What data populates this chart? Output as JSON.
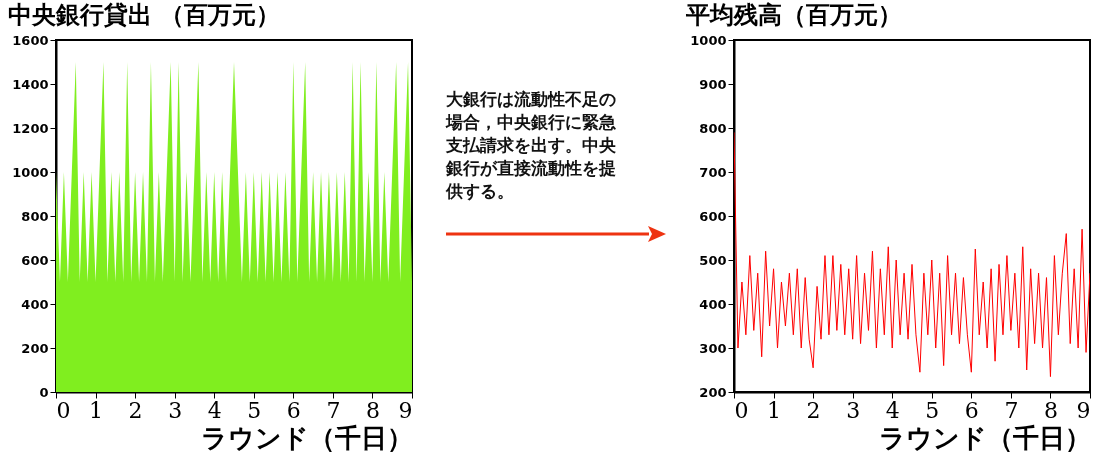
{
  "chart_data": [
    {
      "type": "area",
      "title": "中央銀行貸出 （百万元）",
      "xlabel": "ラウンド（千日）",
      "color": "#80ee1f",
      "xlim": [
        0,
        9
      ],
      "xticks": [
        0,
        1,
        2,
        3,
        4,
        5,
        6,
        7,
        8,
        9
      ],
      "ylim": [
        0,
        1600
      ],
      "yticks": [
        0,
        200,
        400,
        600,
        800,
        1000,
        1200,
        1400,
        1600
      ],
      "annotations": [
        "大銀行は流動性不足の場合，中央銀行に緊急支払請求を出す。中央銀行が直接流動性を提供する。"
      ],
      "x": [
        0,
        0.1,
        0.2,
        0.3,
        0.4,
        0.5,
        0.6,
        0.7,
        0.8,
        0.9,
        1,
        1.1,
        1.2,
        1.3,
        1.4,
        1.5,
        1.6,
        1.7,
        1.8,
        1.9,
        2,
        2.1,
        2.2,
        2.3,
        2.4,
        2.5,
        2.6,
        2.7,
        2.8,
        2.9,
        3,
        3.1,
        3.2,
        3.3,
        3.4,
        3.5,
        3.6,
        3.7,
        3.8,
        3.9,
        4,
        4.1,
        4.2,
        4.3,
        4.4,
        4.5,
        4.6,
        4.7,
        4.8,
        4.9,
        5,
        5.1,
        5.2,
        5.3,
        5.4,
        5.5,
        5.6,
        5.7,
        5.8,
        5.9,
        6,
        6.1,
        6.2,
        6.3,
        6.4,
        6.5,
        6.6,
        6.7,
        6.8,
        6.9,
        7,
        7.1,
        7.2,
        7.3,
        7.4,
        7.5,
        7.6,
        7.7,
        7.8,
        7.9,
        8,
        8.1,
        8.2,
        8.3,
        8.4,
        8.5,
        8.6,
        8.7,
        8.8,
        8.9,
        9
      ],
      "values": [
        1000,
        500,
        1000,
        500,
        1000,
        1500,
        500,
        1000,
        500,
        1000,
        500,
        1000,
        1500,
        500,
        1000,
        500,
        1000,
        500,
        1500,
        500,
        1000,
        500,
        1000,
        500,
        1500,
        500,
        1000,
        500,
        1000,
        1500,
        500,
        1500,
        500,
        1000,
        500,
        1000,
        1500,
        500,
        1000,
        500,
        1000,
        500,
        1000,
        500,
        1000,
        1500,
        1000,
        500,
        1000,
        500,
        1000,
        500,
        1000,
        500,
        1000,
        500,
        1000,
        500,
        1000,
        500,
        1500,
        500,
        1000,
        1500,
        500,
        1000,
        500,
        1000,
        500,
        1000,
        500,
        1000,
        500,
        1000,
        500,
        1500,
        500,
        1500,
        500,
        1000,
        500,
        1500,
        500,
        1000,
        500,
        1000,
        1500,
        500,
        1000,
        1500,
        500
      ]
    },
    {
      "type": "line",
      "title": "平均残高（百万元）",
      "xlabel": "ラウンド（千日）",
      "color": "#ff0000",
      "xlim": [
        0,
        9
      ],
      "xticks": [
        0,
        1,
        2,
        3,
        4,
        5,
        6,
        7,
        8,
        9
      ],
      "ylim": [
        200,
        1000
      ],
      "yticks": [
        200,
        300,
        400,
        500,
        600,
        700,
        800,
        900,
        1000
      ],
      "x": [
        0,
        0.1,
        0.2,
        0.3,
        0.4,
        0.5,
        0.6,
        0.7,
        0.8,
        0.9,
        1,
        1.1,
        1.2,
        1.3,
        1.4,
        1.5,
        1.6,
        1.7,
        1.8,
        1.9,
        2,
        2.1,
        2.2,
        2.3,
        2.4,
        2.5,
        2.6,
        2.7,
        2.8,
        2.9,
        3,
        3.1,
        3.2,
        3.3,
        3.4,
        3.5,
        3.6,
        3.7,
        3.8,
        3.9,
        4,
        4.1,
        4.2,
        4.3,
        4.4,
        4.5,
        4.6,
        4.7,
        4.8,
        4.9,
        5,
        5.1,
        5.2,
        5.3,
        5.4,
        5.5,
        5.6,
        5.7,
        5.8,
        5.9,
        6,
        6.1,
        6.2,
        6.3,
        6.4,
        6.5,
        6.6,
        6.7,
        6.8,
        6.9,
        7,
        7.1,
        7.2,
        7.3,
        7.4,
        7.5,
        7.6,
        7.7,
        7.8,
        7.9,
        8,
        8.1,
        8.2,
        8.3,
        8.4,
        8.5,
        8.6,
        8.7,
        8.8,
        8.9,
        9
      ],
      "values": [
        790,
        300,
        450,
        330,
        510,
        340,
        470,
        280,
        520,
        350,
        480,
        300,
        450,
        350,
        470,
        330,
        480,
        300,
        460,
        320,
        255,
        440,
        320,
        510,
        330,
        510,
        340,
        490,
        330,
        480,
        320,
        510,
        310,
        470,
        340,
        520,
        300,
        480,
        330,
        530,
        300,
        500,
        330,
        470,
        320,
        490,
        330,
        245,
        470,
        330,
        500,
        300,
        470,
        260,
        510,
        330,
        470,
        310,
        460,
        330,
        245,
        525,
        330,
        450,
        300,
        480,
        270,
        490,
        330,
        510,
        340,
        470,
        300,
        530,
        250,
        480,
        310,
        470,
        300,
        460,
        235,
        510,
        330,
        470,
        560,
        310,
        480,
        300,
        570,
        290,
        470
      ]
    }
  ]
}
